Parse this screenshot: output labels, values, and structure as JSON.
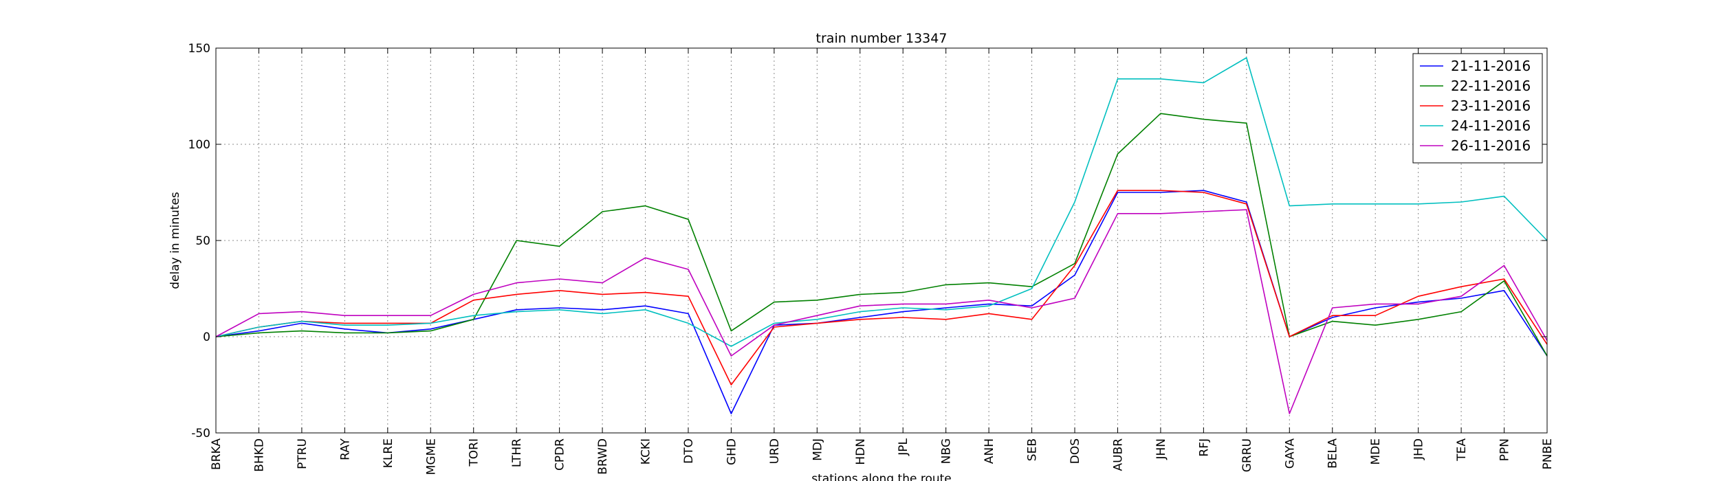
{
  "chart_data": {
    "type": "line",
    "title": "train number 13347",
    "xlabel": "stations along the route",
    "ylabel": "delay in minutes",
    "ylim": [
      -50,
      150
    ],
    "yticks": [
      -50,
      0,
      50,
      100,
      150
    ],
    "grid": true,
    "legend_position": "top-right",
    "categories": [
      "BRKA",
      "BHKD",
      "PTRU",
      "RAY",
      "KLRE",
      "MGME",
      "TORI",
      "LTHR",
      "CPDR",
      "BRWD",
      "KCKI",
      "DTO",
      "GHD",
      "URD",
      "MDJ",
      "HDN",
      "JPL",
      "NBG",
      "ANH",
      "SEB",
      "DOS",
      "AUBR",
      "JHN",
      "RFJ",
      "GRRU",
      "GAYA",
      "BELA",
      "MDE",
      "JHD",
      "TEA",
      "PPN",
      "PNBE"
    ],
    "series": [
      {
        "name": "21-11-2016",
        "color": "#0000ff",
        "values": [
          0,
          3,
          7,
          4,
          2,
          4,
          9,
          14,
          15,
          14,
          16,
          12,
          -40,
          6,
          7,
          10,
          13,
          15,
          17,
          16,
          32,
          75,
          75,
          76,
          70,
          0,
          10,
          15,
          18,
          20,
          24,
          -10
        ]
      },
      {
        "name": "22-11-2016",
        "color": "#008000",
        "values": [
          0,
          2,
          3,
          2,
          2,
          3,
          9,
          50,
          47,
          65,
          68,
          61,
          3,
          18,
          19,
          22,
          23,
          27,
          28,
          26,
          38,
          95,
          116,
          113,
          111,
          0,
          8,
          6,
          9,
          13,
          29,
          -10
        ]
      },
      {
        "name": "23-11-2016",
        "color": "#ff0000",
        "values": [
          0,
          5,
          8,
          7,
          7,
          7,
          19,
          22,
          24,
          22,
          23,
          21,
          -25,
          5,
          7,
          9,
          10,
          9,
          12,
          9,
          37,
          76,
          76,
          75,
          69,
          0,
          11,
          11,
          21,
          26,
          30,
          -4
        ]
      },
      {
        "name": "24-11-2016",
        "color": "#00bfbf",
        "values": [
          0,
          5,
          8,
          6,
          6,
          7,
          11,
          13,
          14,
          12,
          14,
          7,
          -5,
          7,
          9,
          13,
          15,
          14,
          16,
          25,
          70,
          134,
          134,
          132,
          145,
          68,
          69,
          69,
          69,
          70,
          73,
          50
        ]
      },
      {
        "name": "26-11-2016",
        "color": "#bf00bf",
        "values": [
          0,
          12,
          13,
          11,
          11,
          11,
          22,
          28,
          30,
          28,
          41,
          35,
          -10,
          6,
          11,
          16,
          17,
          17,
          19,
          15,
          20,
          64,
          64,
          65,
          66,
          -40,
          15,
          17,
          17,
          21,
          37,
          -2
        ]
      }
    ]
  }
}
